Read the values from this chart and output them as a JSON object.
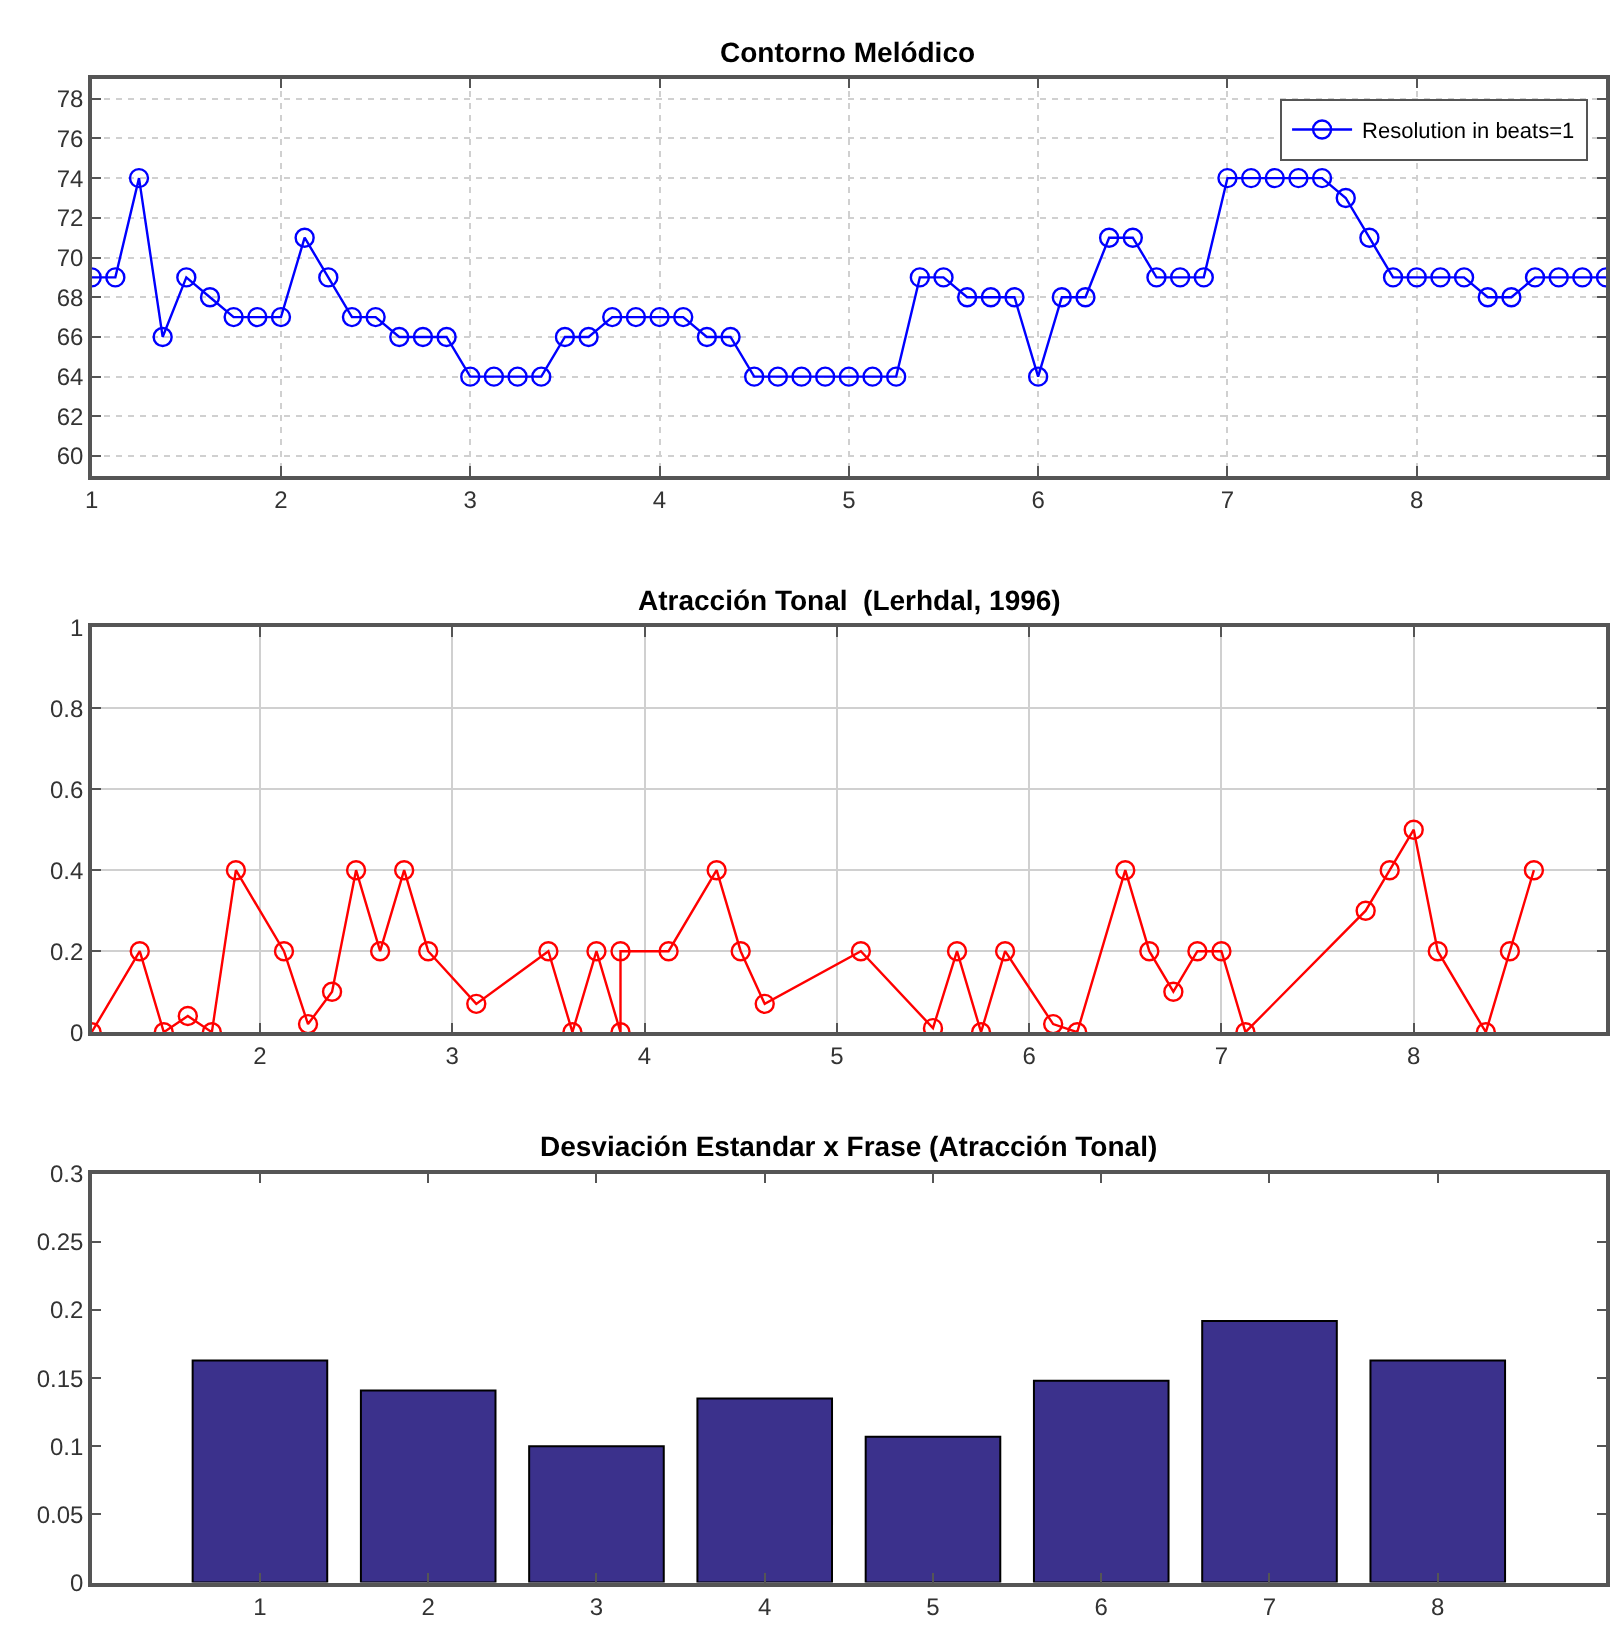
{
  "chart_data": [
    {
      "type": "line",
      "title": "Contorno Melódico",
      "marker": "circle",
      "grid": true,
      "legend": "top right",
      "xlim": [
        1,
        9
      ],
      "xticks": [
        1,
        2,
        3,
        4,
        5,
        6,
        7,
        8
      ],
      "ylim": [
        59,
        79
      ],
      "yticks": [
        60,
        62,
        64,
        66,
        68,
        70,
        72,
        74,
        76,
        78
      ],
      "x": [
        1,
        1.125,
        1.25,
        1.375,
        1.5,
        1.625,
        1.75,
        1.875,
        2,
        2.125,
        2.25,
        2.375,
        2.5,
        2.625,
        2.75,
        2.875,
        3,
        3.125,
        3.25,
        3.375,
        3.5,
        3.625,
        3.75,
        3.875,
        4,
        4.125,
        4.25,
        4.375,
        4.5,
        4.625,
        4.75,
        4.875,
        5,
        5.125,
        5.25,
        5.375,
        5.5,
        5.625,
        5.75,
        5.875,
        6,
        6.125,
        6.25,
        6.375,
        6.5,
        6.625,
        6.75,
        6.875,
        7,
        7.125,
        7.25,
        7.375,
        7.5,
        7.625,
        7.75,
        7.875,
        8,
        8.125,
        8.25,
        8.375,
        8.5,
        8.625,
        8.75,
        8.875,
        9
      ],
      "series": [
        {
          "name": "Resolution in beats=1",
          "color": "#0000ff",
          "values": [
            69,
            69,
            74,
            66,
            69,
            68,
            67,
            67,
            67,
            71,
            69,
            67,
            67,
            66,
            66,
            66,
            64,
            64,
            64,
            64,
            66,
            66,
            67,
            67,
            67,
            67,
            66,
            66,
            64,
            64,
            64,
            64,
            64,
            64,
            64,
            69,
            69,
            68,
            68,
            68,
            64,
            68,
            68,
            71,
            71,
            69,
            69,
            69,
            74,
            74,
            74,
            74,
            74,
            73,
            71,
            69,
            69,
            69,
            69,
            68,
            68,
            69,
            69,
            69,
            69
          ]
        }
      ]
    },
    {
      "type": "line",
      "title": "Atracción Tonal  (Lerhdal, 1996)",
      "marker": "circle",
      "grid": true,
      "legend": false,
      "xlim": [
        1.125,
        9
      ],
      "xticks": [
        2,
        3,
        4,
        5,
        6,
        7,
        8
      ],
      "ylim": [
        0,
        1
      ],
      "yticks": [
        0,
        {
          "value": 0.2,
          "label": "0.2"
        },
        {
          "value": 0.4,
          "label": "0.4"
        },
        {
          "value": 0.6,
          "label": "0.6"
        },
        {
          "value": 0.8,
          "label": "0.8"
        },
        1
      ],
      "x": [
        1.125,
        1.375,
        1.5,
        1.625,
        1.75,
        1.875,
        2.125,
        2.25,
        2.375,
        2.5,
        2.625,
        2.75,
        2.875,
        3.125,
        3.5,
        3.625,
        3.75,
        3.875,
        3.875,
        4.125,
        4.375,
        4.5,
        4.625,
        5.125,
        5.5,
        5.625,
        5.75,
        5.875,
        6.125,
        6.25,
        6.5,
        6.625,
        6.75,
        6.875,
        7,
        7.125,
        7.75,
        7.875,
        8,
        8.125,
        8.375,
        8.5,
        8.625
      ],
      "series": [
        {
          "color": "#ff0000",
          "values": [
            0,
            0.2,
            0,
            0.04,
            0,
            0.4,
            0.2,
            0.02,
            0.1,
            0.4,
            0.2,
            0.4,
            0.2,
            0.07,
            0.2,
            0,
            0.2,
            0,
            0.2,
            0.2,
            0.4,
            0.2,
            0.07,
            0.2,
            0.01,
            0.2,
            0,
            0.2,
            0.02,
            0,
            0.4,
            0.2,
            0.1,
            0.2,
            0.2,
            0,
            0.3,
            0.4,
            0.5,
            0.2,
            0,
            0.2,
            0.4
          ]
        }
      ]
    },
    {
      "type": "bar",
      "title": "Desviación Estandar x Frase (Atracción Tonal)",
      "grid": false,
      "legend": false,
      "xlim": [
        0,
        9
      ],
      "xticks": [
        1,
        2,
        3,
        4,
        5,
        6,
        7,
        8
      ],
      "ylim": [
        0,
        0.3
      ],
      "yticks": [
        0,
        0.05,
        0.1,
        0.15,
        0.2,
        0.25,
        0.3
      ],
      "x": [
        1,
        2,
        3,
        4,
        5,
        6,
        7,
        8
      ],
      "series": [
        {
          "color": "#3b318c",
          "values": [
            0.163,
            0.141,
            0.1,
            0.135,
            0.107,
            0.148,
            0.192,
            0.163
          ]
        }
      ]
    }
  ]
}
